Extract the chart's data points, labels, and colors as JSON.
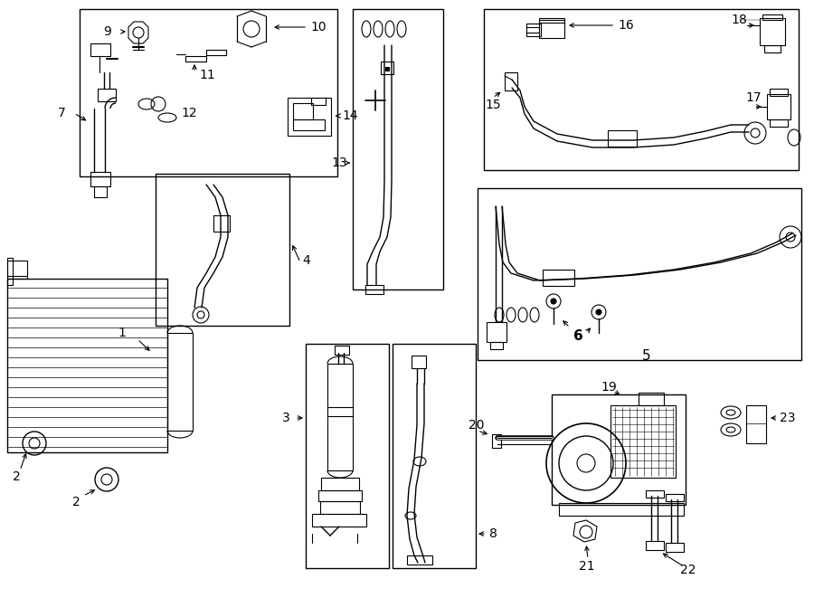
{
  "bg_color": "#ffffff",
  "line_color": "#000000",
  "fig_width": 9.0,
  "fig_height": 6.61,
  "dpi": 100,
  "border": [
    5,
    5,
    895,
    656
  ]
}
